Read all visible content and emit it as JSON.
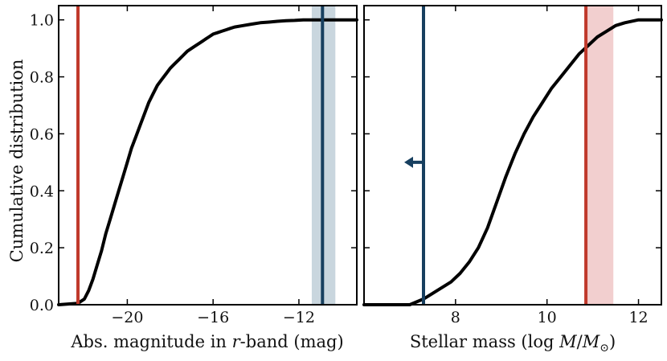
{
  "chart_data": [
    {
      "type": "line",
      "panel": "left",
      "xlabel": "Abs. magnitude in r-band (mag)",
      "xlabel_parts": [
        "Abs. magnitude in ",
        "r",
        "-band (mag)"
      ],
      "ylabel": "Cumulative distribution",
      "xlim": [
        -23.2,
        -9.3
      ],
      "ylim": [
        0,
        1.05
      ],
      "xticks": [
        -20,
        -16,
        -12
      ],
      "xtick_labels": [
        "−20",
        "−16",
        "−12"
      ],
      "yticks": [
        0.0,
        0.2,
        0.4,
        0.6,
        0.8,
        1.0
      ],
      "ytick_labels": [
        "0.0",
        "0.2",
        "0.4",
        "0.6",
        "0.8",
        "1.0"
      ],
      "series": [
        {
          "name": "cumulative distribution",
          "color": "#000000",
          "x": [
            -23.2,
            -22.3,
            -22.0,
            -21.8,
            -21.6,
            -21.4,
            -21.2,
            -21.0,
            -20.8,
            -20.6,
            -20.4,
            -20.2,
            -20.0,
            -19.8,
            -19.6,
            -19.4,
            -19.2,
            -19.0,
            -18.8,
            -18.6,
            -18.4,
            -18.2,
            -18.0,
            -17.8,
            -17.6,
            -17.4,
            -17.2,
            -17.0,
            -16.8,
            -16.6,
            -16.4,
            -16.2,
            -16.0,
            -15.8,
            -15.6,
            -15.4,
            -15.2,
            -15.0,
            -14.6,
            -14.2,
            -13.8,
            -13.4,
            -13.0,
            -12.6,
            -12.2,
            -11.8,
            -11.4,
            -11.0,
            -10.6,
            -9.3
          ],
          "y": [
            0.0,
            0.005,
            0.02,
            0.05,
            0.09,
            0.14,
            0.19,
            0.25,
            0.3,
            0.35,
            0.4,
            0.45,
            0.5,
            0.55,
            0.59,
            0.63,
            0.67,
            0.71,
            0.74,
            0.77,
            0.79,
            0.81,
            0.83,
            0.845,
            0.86,
            0.875,
            0.89,
            0.9,
            0.91,
            0.92,
            0.93,
            0.94,
            0.95,
            0.955,
            0.96,
            0.965,
            0.97,
            0.975,
            0.98,
            0.985,
            0.99,
            0.992,
            0.995,
            0.997,
            0.998,
            1.0,
            1.0,
            1.0,
            1.0,
            1.0
          ]
        }
      ],
      "vlines": [
        {
          "name": "red-line",
          "x": -22.3,
          "color": "#c0392b"
        },
        {
          "name": "navy-line",
          "x": -10.9,
          "color": "#173f5f",
          "band": [
            -11.4,
            -10.3
          ],
          "band_color": "#c9d6de"
        }
      ]
    },
    {
      "type": "line",
      "panel": "right",
      "xlabel": "Stellar mass (log M/M⊙)",
      "xlabel_parts": [
        "Stellar mass (log ",
        "M",
        "/",
        "M",
        "⊙",
        ")"
      ],
      "xlim": [
        6.0,
        12.5
      ],
      "ylim": [
        0,
        1.05
      ],
      "xticks": [
        8,
        10,
        12
      ],
      "xtick_labels": [
        "8",
        "10",
        "12"
      ],
      "series": [
        {
          "name": "cumulative distribution",
          "color": "#000000",
          "x": [
            6.0,
            7.0,
            7.3,
            7.6,
            7.9,
            8.1,
            8.3,
            8.5,
            8.7,
            8.9,
            9.1,
            9.3,
            9.5,
            9.7,
            9.9,
            10.1,
            10.3,
            10.5,
            10.7,
            10.9,
            11.1,
            11.3,
            11.5,
            11.7,
            12.0,
            12.5
          ],
          "y": [
            0.0,
            0.0,
            0.02,
            0.05,
            0.08,
            0.11,
            0.15,
            0.2,
            0.27,
            0.36,
            0.45,
            0.53,
            0.6,
            0.66,
            0.71,
            0.76,
            0.8,
            0.84,
            0.88,
            0.91,
            0.94,
            0.96,
            0.98,
            0.99,
            1.0,
            1.0
          ]
        }
      ],
      "vlines": [
        {
          "name": "navy-line",
          "x": 7.3,
          "color": "#173f5f",
          "arrow": {
            "y": 0.5,
            "direction": "left"
          }
        },
        {
          "name": "red-line",
          "x": 10.85,
          "color": "#c0392b",
          "band": [
            10.85,
            11.45
          ],
          "band_color": "#f2cfcf"
        }
      ]
    }
  ]
}
